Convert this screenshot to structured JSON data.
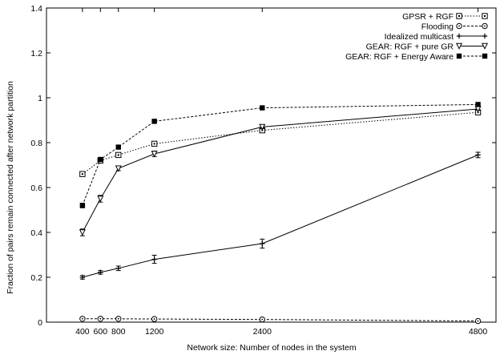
{
  "chart_data": {
    "type": "line",
    "xlabel": "Network size: Number of nodes in the system",
    "ylabel": "Fraction of pairs remain connected after network partition",
    "xlim": [
      0,
      5000
    ],
    "ylim": [
      0,
      1.4
    ],
    "xticks": [
      400,
      600,
      800,
      1200,
      2400,
      4800
    ],
    "xtick_labels": [
      "400",
      "600",
      "800",
      "1200",
      "2400",
      "4800"
    ],
    "yticks": [
      0,
      0.2,
      0.4,
      0.6,
      0.8,
      1,
      1.2,
      1.4
    ],
    "ytick_labels": [
      "0",
      "0.2",
      "0.4",
      "0.6",
      "0.8",
      "1",
      "1.2",
      "1.4"
    ],
    "grid": false,
    "legend_position": "top-right",
    "x": [
      400,
      600,
      800,
      1200,
      2400,
      4800
    ],
    "series": [
      {
        "name": "GPSR + RGF",
        "values": [
          0.66,
          0.72,
          0.745,
          0.795,
          0.855,
          0.935
        ],
        "errors": [
          0,
          0,
          0,
          0,
          0.008,
          0.008
        ],
        "marker": "open-square",
        "line": "dotted"
      },
      {
        "name": "Flooding",
        "values": [
          0.015,
          0.015,
          0.015,
          0.014,
          0.012,
          0.005
        ],
        "errors": [
          0,
          0,
          0,
          0,
          0,
          0
        ],
        "marker": "open-circle",
        "line": "dashed"
      },
      {
        "name": "Idealized multicast",
        "values": [
          0.2,
          0.222,
          0.24,
          0.28,
          0.35,
          0.745
        ],
        "errors": [
          0.008,
          0.008,
          0.01,
          0.018,
          0.02,
          0.012
        ],
        "marker": "plus",
        "line": "solid"
      },
      {
        "name": "GEAR: RGF + pure GR",
        "values": [
          0.4,
          0.55,
          0.685,
          0.75,
          0.87,
          0.95
        ],
        "errors": [
          0.015,
          0.015,
          0.01,
          0.012,
          0.008,
          0.006
        ],
        "marker": "triangle-down",
        "line": "solid"
      },
      {
        "name": "GEAR: RGF + Energy Aware",
        "values": [
          0.52,
          0.725,
          0.78,
          0.895,
          0.955,
          0.97
        ],
        "errors": [
          0.01,
          0,
          0,
          0,
          0,
          0
        ],
        "marker": "filled-square",
        "line": "dashed"
      }
    ]
  }
}
